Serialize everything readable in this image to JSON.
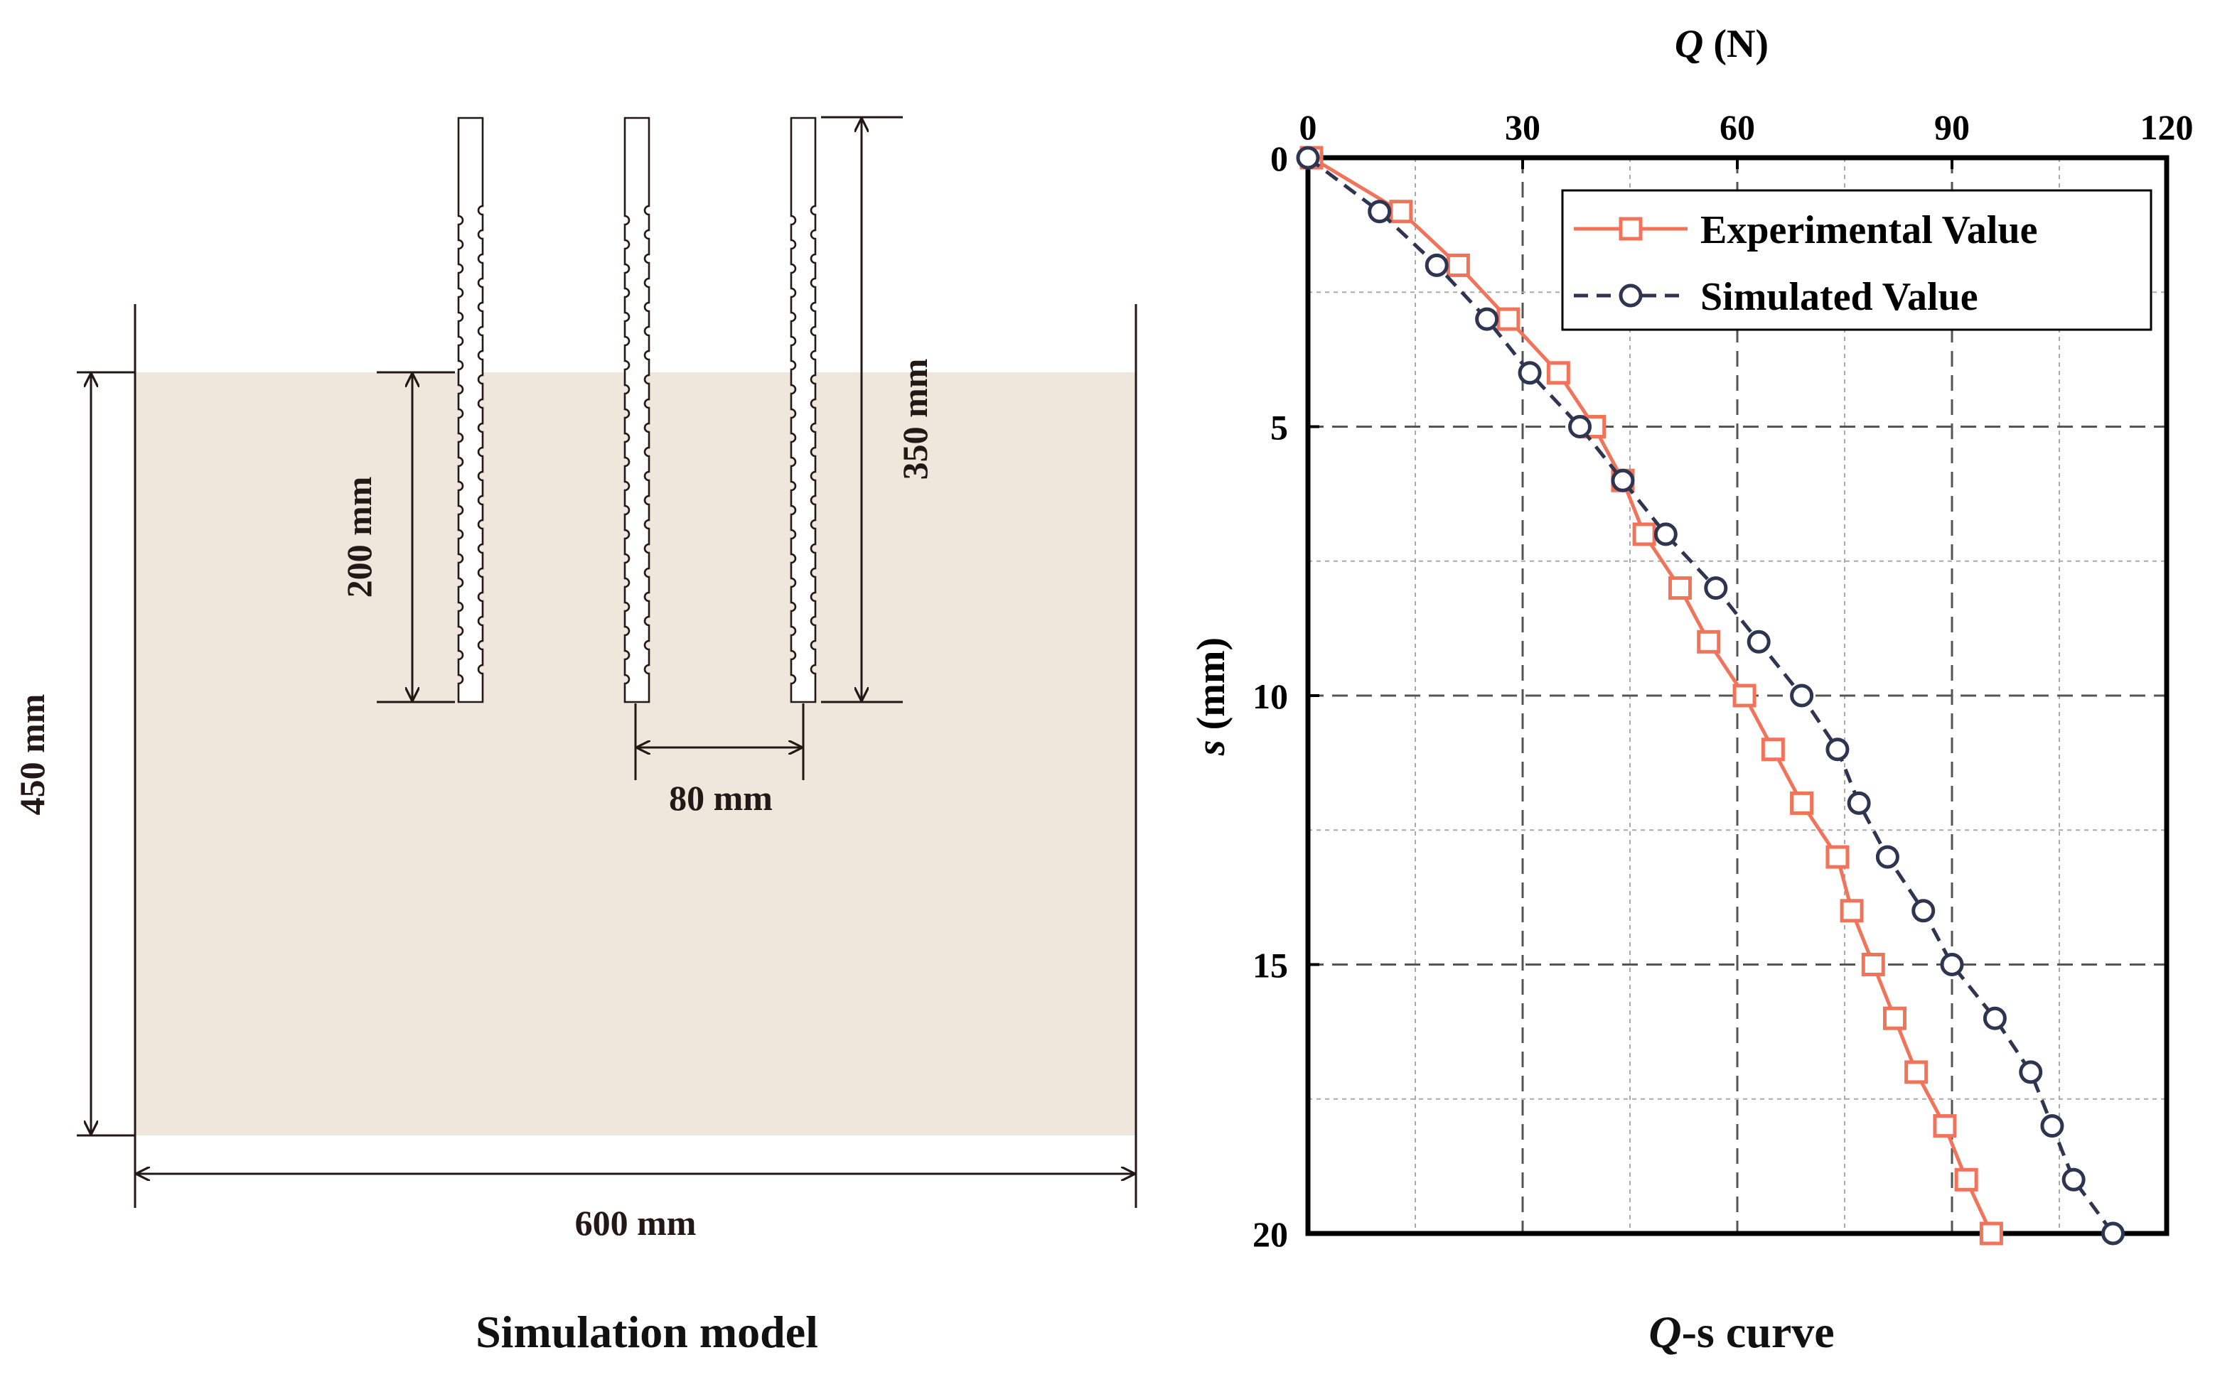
{
  "model": {
    "caption": "Simulation model",
    "dim_depth": "450 mm",
    "dim_width": "600 mm",
    "dim_embed": "200 mm",
    "dim_pile": "350 mm",
    "dim_spacing": "80 mm",
    "soil_color": "#efe6dc",
    "line_color": "#231815"
  },
  "chart_data": {
    "type": "line",
    "caption_q": "Q",
    "caption_rest": "-s curve",
    "top_axis": {
      "label_var": "Q",
      "label_unit": " (N)",
      "range": [
        0,
        120
      ],
      "ticks": [
        0,
        30,
        60,
        90,
        120
      ]
    },
    "left_axis": {
      "label_var": "s",
      "label_unit": " (mm)",
      "range": [
        0,
        20
      ],
      "ticks": [
        0,
        5,
        10,
        15,
        20
      ],
      "inverted": true
    },
    "grid": true,
    "legend_position": "top-right",
    "series": [
      {
        "name": "Experimental Value",
        "marker": "square",
        "line": "solid",
        "color": "#f0735a",
        "points": [
          [
            0.5,
            0
          ],
          [
            13,
            1
          ],
          [
            21,
            2
          ],
          [
            28,
            3
          ],
          [
            35,
            4
          ],
          [
            40,
            5
          ],
          [
            44,
            6
          ],
          [
            47,
            7
          ],
          [
            52,
            8
          ],
          [
            56,
            9
          ],
          [
            61,
            10
          ],
          [
            65,
            11
          ],
          [
            69,
            12
          ],
          [
            74,
            13
          ],
          [
            76,
            14
          ],
          [
            79,
            15
          ],
          [
            82,
            16
          ],
          [
            85,
            17
          ],
          [
            89,
            18
          ],
          [
            92,
            19
          ],
          [
            95.5,
            20
          ]
        ]
      },
      {
        "name": "Simulated Value",
        "marker": "circle",
        "line": "dashed",
        "color": "#2e3550",
        "points": [
          [
            0,
            0
          ],
          [
            10,
            1
          ],
          [
            18,
            2
          ],
          [
            25,
            3
          ],
          [
            31,
            4
          ],
          [
            38,
            5
          ],
          [
            44,
            6
          ],
          [
            50,
            7
          ],
          [
            57,
            8
          ],
          [
            63,
            9
          ],
          [
            69,
            10
          ],
          [
            74,
            11
          ],
          [
            77,
            12
          ],
          [
            81,
            13
          ],
          [
            86,
            14
          ],
          [
            90,
            15
          ],
          [
            96,
            16
          ],
          [
            101,
            17
          ],
          [
            104,
            18
          ],
          [
            107,
            19
          ],
          [
            112.5,
            20
          ]
        ]
      }
    ]
  }
}
